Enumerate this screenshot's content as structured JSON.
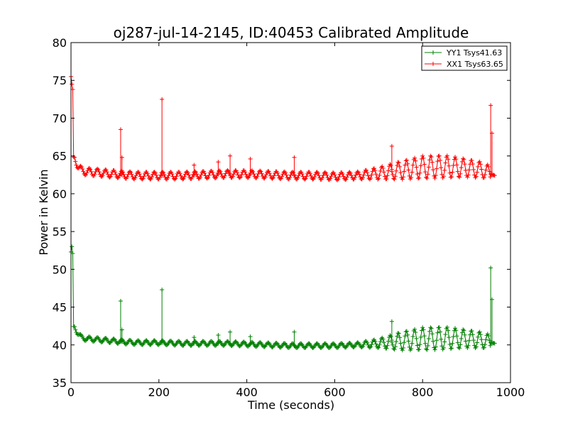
{
  "chart_data": {
    "type": "line",
    "title": "oj287-jul-14-2145, ID:40453 Calibrated Amplitude",
    "xlabel": "Time (seconds)",
    "ylabel": "Power in Kelvin",
    "xlim": [
      0,
      1000
    ],
    "ylim": [
      35,
      80
    ],
    "xticks": [
      "0",
      "200",
      "400",
      "600",
      "800",
      "1000"
    ],
    "yticks": [
      "35",
      "40",
      "45",
      "50",
      "55",
      "60",
      "65",
      "70",
      "75",
      "80"
    ],
    "grid": false,
    "legend_position": "top-right",
    "marker": "plus",
    "series": [
      {
        "name": "YY1 Tsys41.63",
        "color": "#008000",
        "base_points": [
          [
            0,
            52.3
          ],
          [
            2,
            53.0
          ],
          [
            4,
            52.1
          ],
          [
            5,
            42.5
          ],
          [
            8,
            42.3
          ],
          [
            12,
            41.9
          ],
          [
            18,
            41.4
          ],
          [
            25,
            40.9
          ],
          [
            40,
            40.8
          ],
          [
            60,
            40.7
          ],
          [
            80,
            40.6
          ],
          [
            100,
            40.5
          ],
          [
            120,
            40.4
          ],
          [
            150,
            40.3
          ],
          [
            200,
            40.3
          ],
          [
            250,
            40.2
          ],
          [
            300,
            40.2
          ],
          [
            350,
            40.2
          ],
          [
            400,
            40.1
          ],
          [
            450,
            40.0
          ],
          [
            500,
            39.9
          ],
          [
            550,
            39.9
          ],
          [
            600,
            39.9
          ],
          [
            650,
            40.0
          ],
          [
            700,
            40.2
          ],
          [
            750,
            40.5
          ],
          [
            800,
            40.8
          ],
          [
            850,
            40.9
          ],
          [
            900,
            40.8
          ],
          [
            940,
            40.6
          ],
          [
            955,
            40.3
          ],
          [
            965,
            40.2
          ]
        ],
        "oscillation_amplitude_profile": [
          [
            0,
            0.3
          ],
          [
            650,
            0.3
          ],
          [
            700,
            0.6
          ],
          [
            750,
            1.2
          ],
          [
            800,
            1.5
          ],
          [
            850,
            1.5
          ],
          [
            900,
            1.2
          ],
          [
            950,
            1.0
          ],
          [
            965,
            1.0
          ]
        ],
        "oscillation_period": 18.5,
        "spikes": [
          [
            113,
            45.8
          ],
          [
            116,
            42.0
          ],
          [
            207,
            47.3
          ],
          [
            280,
            41.0
          ],
          [
            335,
            41.3
          ],
          [
            362,
            41.7
          ],
          [
            408,
            41.1
          ],
          [
            508,
            41.7
          ],
          [
            730,
            43.1
          ],
          [
            955,
            50.2
          ],
          [
            958,
            46.0
          ]
        ]
      },
      {
        "name": "XX1 Tsys63.65",
        "color": "#ff0000",
        "base_points": [
          [
            0,
            75.5
          ],
          [
            2,
            74.5
          ],
          [
            4,
            73.8
          ],
          [
            5,
            65.0
          ],
          [
            8,
            64.6
          ],
          [
            12,
            64.2
          ],
          [
            18,
            63.5
          ],
          [
            25,
            63.0
          ],
          [
            40,
            62.9
          ],
          [
            60,
            62.8
          ],
          [
            80,
            62.7
          ],
          [
            100,
            62.6
          ],
          [
            120,
            62.5
          ],
          [
            150,
            62.4
          ],
          [
            200,
            62.4
          ],
          [
            250,
            62.4
          ],
          [
            300,
            62.5
          ],
          [
            350,
            62.6
          ],
          [
            400,
            62.6
          ],
          [
            450,
            62.5
          ],
          [
            500,
            62.4
          ],
          [
            550,
            62.4
          ],
          [
            600,
            62.3
          ],
          [
            650,
            62.4
          ],
          [
            700,
            62.7
          ],
          [
            750,
            63.1
          ],
          [
            800,
            63.5
          ],
          [
            850,
            63.6
          ],
          [
            900,
            63.4
          ],
          [
            940,
            63.1
          ],
          [
            955,
            62.6
          ],
          [
            965,
            62.4
          ]
        ],
        "oscillation_amplitude_profile": [
          [
            0,
            0.5
          ],
          [
            650,
            0.5
          ],
          [
            700,
            0.8
          ],
          [
            750,
            1.2
          ],
          [
            800,
            1.5
          ],
          [
            850,
            1.5
          ],
          [
            900,
            1.2
          ],
          [
            950,
            1.0
          ],
          [
            965,
            1.0
          ]
        ],
        "oscillation_period": 18.5,
        "spikes": [
          [
            113,
            68.5
          ],
          [
            116,
            64.8
          ],
          [
            207,
            72.5
          ],
          [
            280,
            63.8
          ],
          [
            335,
            64.2
          ],
          [
            362,
            65.0
          ],
          [
            408,
            64.6
          ],
          [
            508,
            64.8
          ],
          [
            730,
            66.3
          ],
          [
            955,
            71.7
          ],
          [
            958,
            68.0
          ]
        ]
      }
    ]
  }
}
